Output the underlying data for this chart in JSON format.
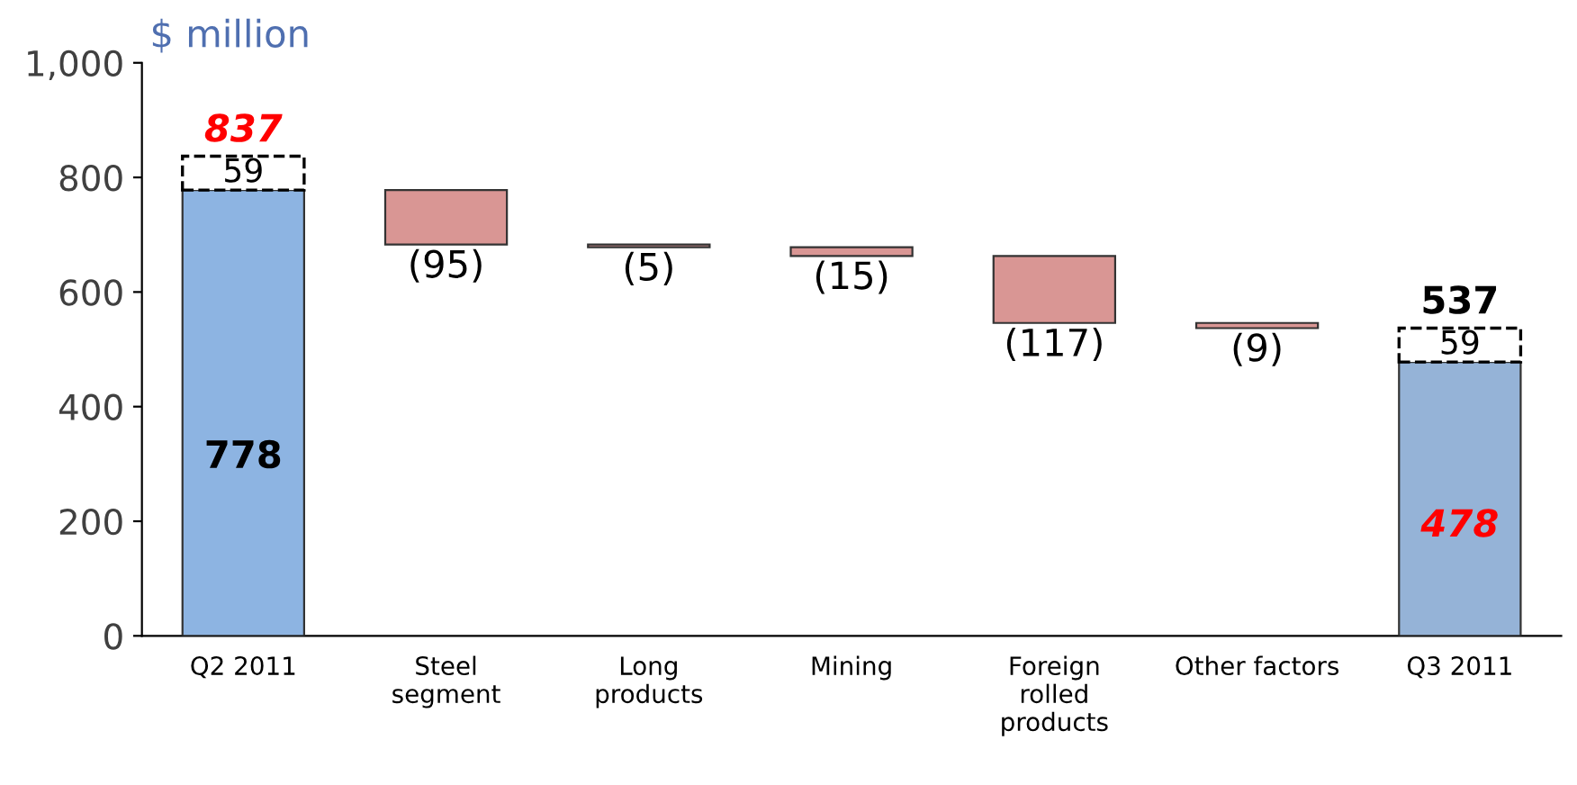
{
  "chart_data": {
    "type": "bar",
    "title": "$ million",
    "categories": [
      "Q2 2011",
      "Steel\nsegment",
      "Long\nproducts",
      "Mining",
      "Foreign\nrolled\nproducts",
      "Other factors",
      "Q3 2011"
    ],
    "stacked": true,
    "series": [
      {
        "colors": [
          "#8db4e2",
          null,
          null,
          null,
          null,
          null,
          "#95b3d7"
        ],
        "values": [
          778,
          null,
          null,
          null,
          null,
          null,
          478
        ],
        "value_labels": [
          "778",
          null,
          null,
          null,
          null,
          null,
          "478"
        ]
      },
      {
        "colors": [
          "#ffffff",
          null,
          null,
          null,
          null,
          null,
          "#ffffff"
        ],
        "line_style": "dashed",
        "values": [
          59,
          null,
          null,
          null,
          null,
          null,
          59
        ],
        "value_labels": [
          "59",
          null,
          null,
          null,
          null,
          null,
          "59"
        ]
      },
      {
        "color": "#d99694",
        "base": [
          null,
          778,
          683,
          678,
          663,
          546,
          null
        ],
        "values": [
          null,
          -95,
          -5,
          -15,
          -117,
          -9,
          null
        ],
        "value_labels": [
          null,
          "(95)",
          "(5)",
          "(15)",
          "(117)",
          "(9)",
          null
        ]
      }
    ],
    "totals": [
      "837",
      null,
      null,
      null,
      null,
      null,
      "537"
    ],
    "ylim": [
      0,
      1000
    ],
    "yticks": [
      0,
      200,
      400,
      600,
      800,
      {
        "value": 1000,
        "label": "1,000"
      }
    ],
    "grid": false,
    "legend": false
  }
}
